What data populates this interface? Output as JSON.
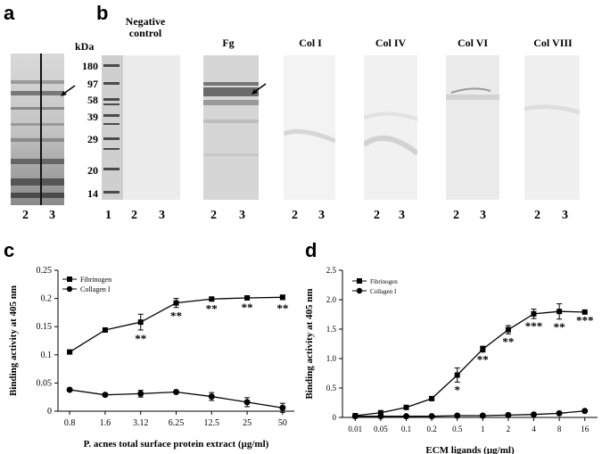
{
  "panels": {
    "a": {
      "letter": "a",
      "lanes": [
        "2",
        "3"
      ]
    },
    "b": {
      "letter": "b",
      "kda_label": "kDa",
      "markers": [
        "180",
        "97",
        "58",
        "39",
        "29",
        "20",
        "14"
      ],
      "ladder_lane": "1",
      "groups": [
        {
          "title": "Negative control",
          "lanes": [
            "2",
            "3"
          ]
        },
        {
          "title": "Fg",
          "lanes": [
            "2",
            "3"
          ]
        },
        {
          "title": "Col I",
          "lanes": [
            "2",
            "3"
          ]
        },
        {
          "title": "Col IV",
          "lanes": [
            "2",
            "3"
          ]
        },
        {
          "title": "Col VI",
          "lanes": [
            "2",
            "3"
          ]
        },
        {
          "title": "Col VIII",
          "lanes": [
            "2",
            "3"
          ]
        }
      ]
    },
    "c": {
      "letter": "c"
    },
    "d": {
      "letter": "d"
    }
  },
  "chart_data": [
    {
      "type": "line",
      "panel": "c",
      "categories": [
        "0.8",
        "1.6",
        "3.12",
        "6.25",
        "12.5",
        "25",
        "50"
      ],
      "series": [
        {
          "name": "Fibrinogen",
          "marker": "square",
          "values": [
            0.105,
            0.144,
            0.158,
            0.192,
            0.199,
            0.201,
            0.202
          ],
          "errors": [
            0.002,
            0.002,
            0.014,
            0.008,
            0.002,
            0.002,
            0.004
          ]
        },
        {
          "name": "Collagen I",
          "marker": "circle",
          "values": [
            0.038,
            0.029,
            0.031,
            0.034,
            0.026,
            0.016,
            0.006
          ],
          "errors": [
            0.002,
            0.002,
            0.006,
            0.002,
            0.007,
            0.008,
            0.008
          ]
        }
      ],
      "significance": [
        "",
        "",
        "**",
        "**",
        "**",
        "**",
        "**"
      ],
      "xlabel": "P. acnes total surface protein extract (µg/ml)",
      "ylabel": "Binding activity at 405 nm",
      "ylim": [
        0,
        0.25
      ],
      "yticks": [
        "0",
        "0.05",
        "0.1",
        "0.15",
        "0.2",
        "0.25"
      ],
      "legend": "top-left",
      "grid": false
    },
    {
      "type": "line",
      "panel": "d",
      "categories": [
        "0.01",
        "0.05",
        "0.1",
        "0.2",
        "0.5",
        "1",
        "2",
        "4",
        "8",
        "16"
      ],
      "series": [
        {
          "name": "Fibrinogen",
          "marker": "square",
          "values": [
            0.03,
            0.08,
            0.17,
            0.32,
            0.72,
            1.16,
            1.49,
            1.76,
            1.8,
            1.79
          ],
          "errors": [
            0.01,
            0.02,
            0.02,
            0.03,
            0.12,
            0.05,
            0.07,
            0.08,
            0.13,
            0.01
          ]
        },
        {
          "name": "Collagen I",
          "marker": "circle",
          "values": [
            0.02,
            0.02,
            0.02,
            0.02,
            0.03,
            0.03,
            0.04,
            0.05,
            0.07,
            0.11
          ],
          "errors": [
            0.0,
            0.0,
            0.0,
            0.0,
            0.0,
            0.0,
            0.0,
            0.0,
            0.0,
            0.01
          ]
        }
      ],
      "significance": [
        "",
        "",
        "",
        "",
        "*",
        "**",
        "**",
        "***",
        "**",
        "***"
      ],
      "xlabel": "ECM ligands (µg/ml)",
      "ylabel": "Binding activity at 405 nm",
      "ylim": [
        0,
        2.5
      ],
      "yticks": [
        "0",
        "0.5",
        "1.0",
        "1.5",
        "2.0",
        "2.5"
      ],
      "legend": "top-left",
      "grid": false
    }
  ]
}
